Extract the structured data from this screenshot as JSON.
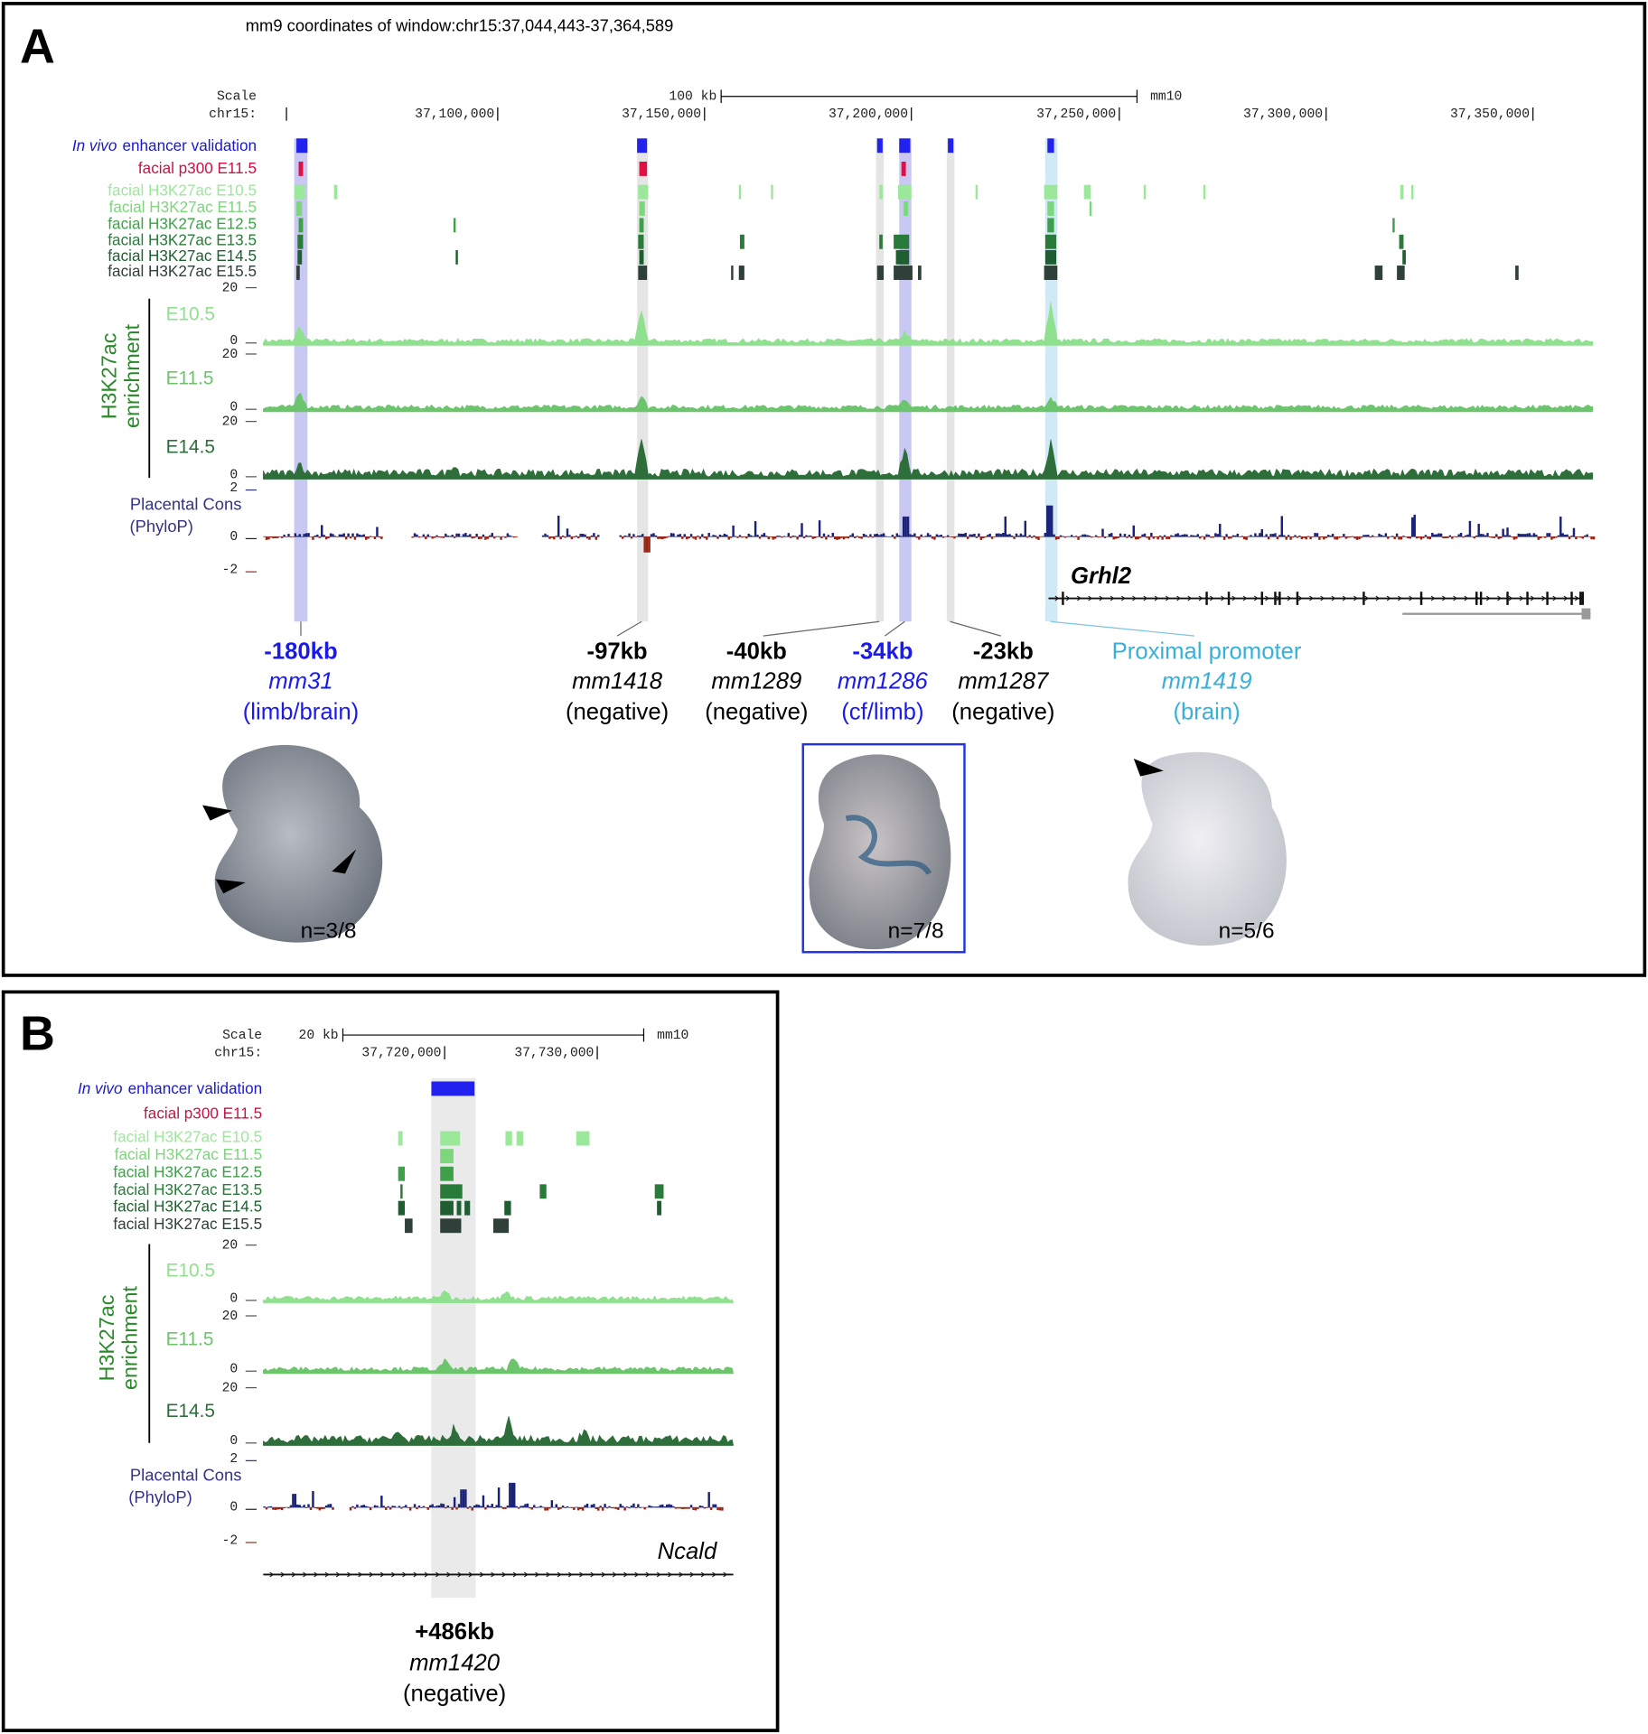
{
  "panel_a": {
    "label": "A",
    "window": "mm9 coordinates of window:chr15:37,044,443-37,364,589",
    "scale": {
      "scale_label": "Scale",
      "chrom_label": "chr15:",
      "bar_label": "100 kb",
      "assembly": "mm10",
      "ticks": [
        "37,100,000",
        "37,150,000",
        "37,200,000",
        "37,250,000",
        "37,300,000",
        "37,350,000"
      ]
    },
    "tracks": {
      "validation": [
        "In vivo",
        "enhancer validation"
      ],
      "p300": "facial p300 E11.5",
      "h3k27ac": [
        "facial H3K27ac E10.5",
        "facial H3K27ac E11.5",
        "facial H3K27ac E12.5",
        "facial H3K27ac E13.5",
        "facial H3K27ac E14.5",
        "facial H3K27ac E15.5"
      ]
    },
    "signal": {
      "title": [
        "H3K27ac",
        "enrichment"
      ],
      "stages": [
        "E10.5",
        "E11.5",
        "E14.5"
      ],
      "max": "20",
      "min": "0"
    },
    "conservation": {
      "title": [
        "Placental Cons",
        "(PhyloP)"
      ],
      "ticks": [
        "2",
        "0",
        "-2"
      ]
    },
    "gene": "Grhl2",
    "elements": [
      {
        "position": "-180kb",
        "id": "mm31",
        "result": "(limb/brain)"
      },
      {
        "position": "-97kb",
        "id": "mm1418",
        "result": "(negative)"
      },
      {
        "position": "-40kb",
        "id": "mm1289",
        "result": "(negative)"
      },
      {
        "position": "-34kb",
        "id": "mm1286",
        "result": "(cf/limb)"
      },
      {
        "position": "-23kb",
        "id": "mm1287",
        "result": "(negative)"
      },
      {
        "position": "Proximal promoter",
        "id": "mm1419",
        "result": "(brain)"
      }
    ],
    "embryos": [
      "n=3/8",
      "n=7/8",
      "n=5/6"
    ]
  },
  "panel_b": {
    "label": "B",
    "scale": {
      "scale_label": "Scale",
      "chrom_label": "chr15:",
      "bar_label": "20 kb",
      "assembly": "mm10",
      "ticks": [
        "37,720,000",
        "37,730,000"
      ]
    },
    "tracks": {
      "validation": [
        "In vivo",
        "enhancer validation"
      ],
      "p300": "facial p300 E11.5",
      "h3k27ac": [
        "facial H3K27ac E10.5",
        "facial H3K27ac E11.5",
        "facial H3K27ac E12.5",
        "facial H3K27ac E13.5",
        "facial H3K27ac E14.5",
        "facial H3K27ac E15.5"
      ]
    },
    "signal": {
      "title": [
        "H3K27ac",
        "enrichment"
      ],
      "stages": [
        "E10.5",
        "E11.5",
        "E14.5"
      ],
      "max": "20",
      "min": "0"
    },
    "conservation": {
      "title": [
        "Placental Cons",
        "(PhyloP)"
      ],
      "ticks": [
        "2",
        "0",
        "-2"
      ]
    },
    "gene": "Ncald",
    "elements": [
      {
        "position": "+486kb",
        "id": "mm1420",
        "result": "(negative)"
      }
    ]
  }
}
